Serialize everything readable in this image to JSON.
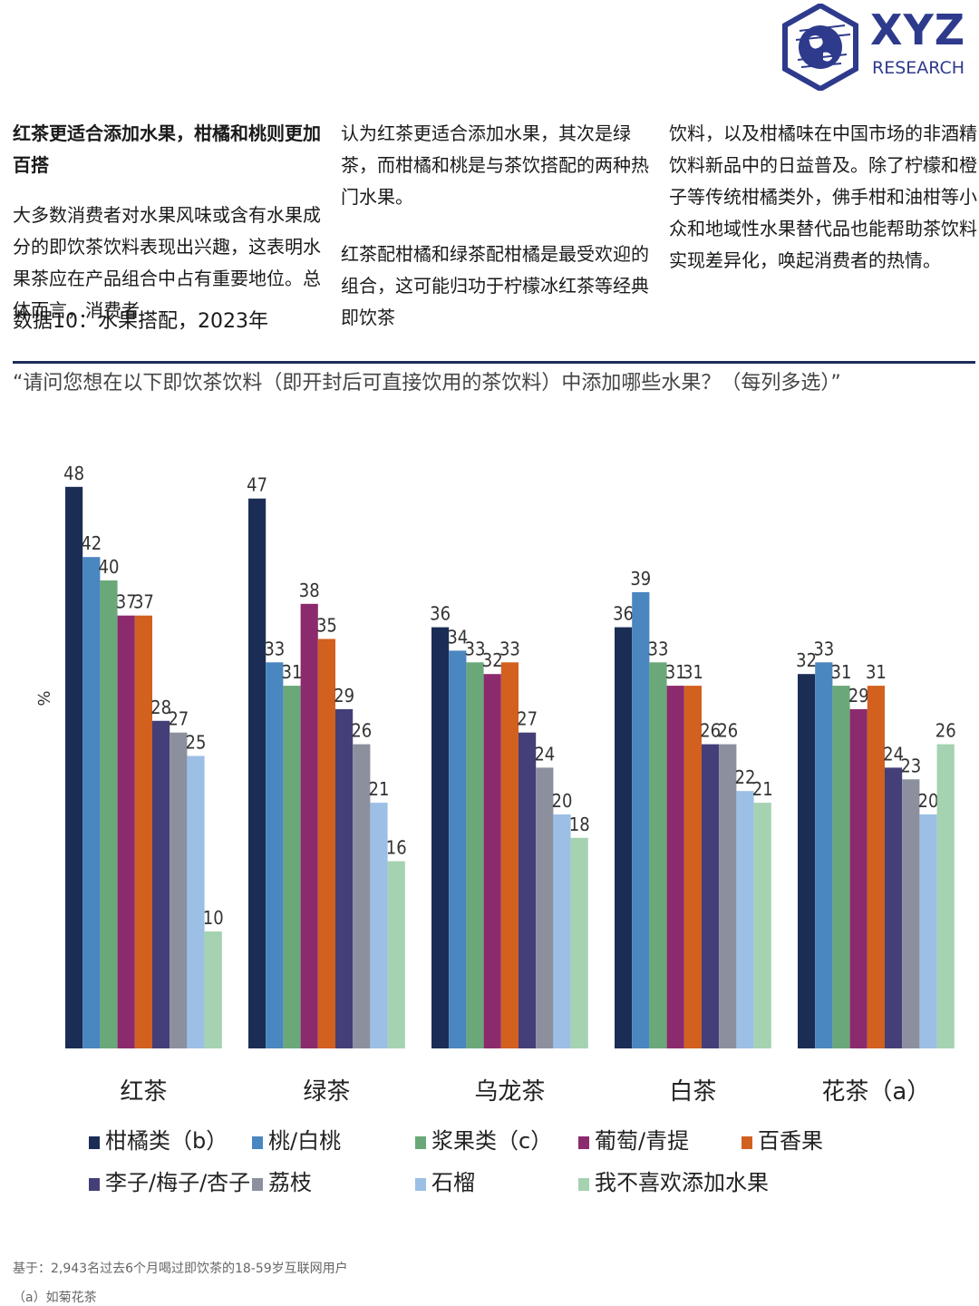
{
  "logo": {
    "name": "XYZ",
    "sub": "RESEARCH",
    "brand_color": "#2e3a8c",
    "icon": "globe-hexagon-icon"
  },
  "intro": {
    "heading": "红茶更适合添加水果，柑橘和桃则更加百搭",
    "col1_para": "大多数消费者对水果风味或含有水果成分的即饮茶饮料表现出兴趣，这表明水果茶应在产品组合中占有重要地位。总体而言，消费者",
    "col2_para1": "认为红茶更适合添加水果，其次是绿茶，而柑橘和桃是与茶饮搭配的两种热门水果。",
    "col2_para2": "红茶配柑橘和绿茶配柑橘是最受欢迎的组合，这可能归功于柠檬冰红茶等经典即饮茶",
    "col3_para": "饮料，以及柑橘味在中国市场的非酒精饮料新品中的日益普及。除了柠檬和橙子等传统柑橘类外，佛手柑和油柑等小众和地域性水果替代品也能帮助茶饮料实现差异化，唤起消费者的热情。"
  },
  "figure": {
    "title": "数据10：水果搭配，2023年",
    "question": "“请问您想在以下即饮茶饮料（即开封后可直接饮用的茶饮料）中添加哪些水果？（每列多选）”"
  },
  "chart_data": {
    "type": "bar",
    "ylabel": "%",
    "ylim": [
      0,
      50
    ],
    "grid": false,
    "legend_position": "bottom",
    "categories": [
      "红茶",
      "绿茶",
      "乌龙茶",
      "白茶",
      "花茶（a）"
    ],
    "series": [
      {
        "name": "柑橘类（b）",
        "color": "#1b2d55",
        "values": [
          48,
          47,
          36,
          36,
          32
        ]
      },
      {
        "name": "桃/白桃",
        "color": "#4a86c0",
        "values": [
          42,
          33,
          34,
          39,
          33
        ]
      },
      {
        "name": "浆果类（c）",
        "color": "#6aa87a",
        "values": [
          40,
          31,
          33,
          33,
          31
        ]
      },
      {
        "name": "葡萄/青提",
        "color": "#8c2a6e",
        "values": [
          37,
          38,
          32,
          31,
          29
        ]
      },
      {
        "name": "百香果",
        "color": "#d2601f",
        "values": [
          37,
          35,
          33,
          31,
          31
        ]
      },
      {
        "name": "李子/梅子/杏子",
        "color": "#443f78",
        "values": [
          28,
          29,
          27,
          26,
          24
        ]
      },
      {
        "name": "荔枝",
        "color": "#8c909e",
        "values": [
          27,
          26,
          24,
          26,
          23
        ]
      },
      {
        "name": "石榴",
        "color": "#9cbfe6",
        "values": [
          25,
          21,
          20,
          22,
          20
        ]
      },
      {
        "name": "我不喜欢添加水果",
        "color": "#a5d2b0",
        "values": [
          10,
          16,
          18,
          21,
          26
        ]
      }
    ]
  },
  "footnotes": {
    "base": "基于：2,943名过去6个月喝过即饮茶的18-59岁互联网用户",
    "note_a": "（a）如菊花茶"
  }
}
